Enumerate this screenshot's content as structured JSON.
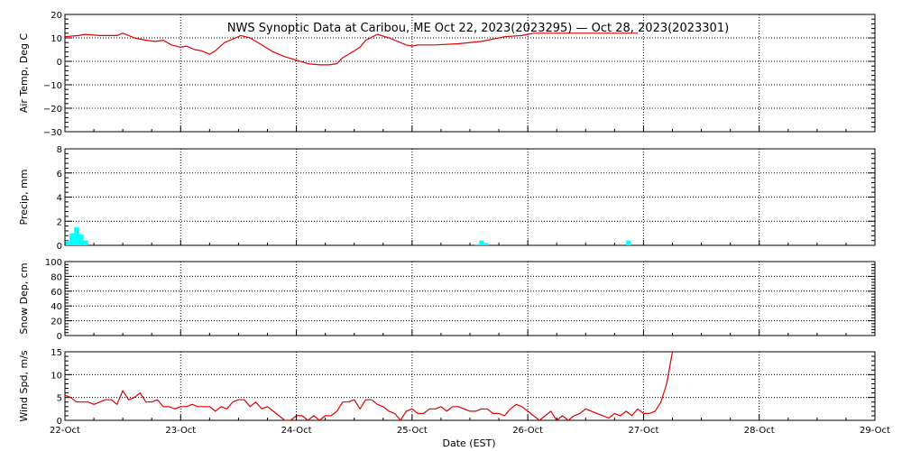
{
  "title": "NWS Synoptic Data at Caribou, ME   Oct 22, 2023(2023295) — Oct 28, 2023(2023301)",
  "colors": {
    "line": "#dd0000",
    "bar": "#00ffff",
    "grid": "#000000",
    "frame": "#000000"
  },
  "x_axis": {
    "label": "Date (EST)",
    "ticks": [
      "22-Oct",
      "23-Oct",
      "24-Oct",
      "25-Oct",
      "26-Oct",
      "27-Oct",
      "28-Oct",
      "29-Oct"
    ],
    "range_days": [
      0,
      7
    ]
  },
  "chart_data": [
    {
      "type": "line",
      "ylabel": "Air Temp, Deg C",
      "ylim": [
        -30,
        20
      ],
      "yticks": [
        -30,
        -20,
        -10,
        0,
        10,
        20
      ],
      "ytick_labels": [
        "−30",
        "−20",
        "−10",
        "0",
        "10",
        "20"
      ],
      "grid": true,
      "x_unit": "days since 22-Oct 00:00 EST",
      "x": [
        0,
        0.12,
        0.17,
        0.3,
        0.45,
        0.5,
        0.6,
        0.7,
        0.78,
        0.85,
        0.92,
        1.0,
        1.05,
        1.12,
        1.18,
        1.25,
        1.3,
        1.38,
        1.45,
        1.52,
        1.6,
        1.7,
        1.8,
        1.9,
        2.0,
        2.1,
        2.2,
        2.28,
        2.35,
        2.4,
        2.45,
        2.55,
        2.6,
        2.7,
        2.8,
        2.9,
        2.95,
        3.0,
        3.05,
        3.2,
        3.4,
        3.6,
        3.8,
        3.95,
        4.05,
        4.15,
        4.3,
        4.5,
        4.7,
        4.85,
        4.95
      ],
      "values": [
        10.5,
        11,
        11.5,
        11,
        11,
        12,
        10,
        9,
        8.5,
        9,
        7,
        6,
        6.5,
        5,
        4.5,
        3,
        4.5,
        8,
        9.5,
        11,
        10,
        7,
        4,
        2,
        0.5,
        -1,
        -1.5,
        -1.5,
        -1,
        1.5,
        3,
        6,
        9,
        11.5,
        10,
        8,
        7,
        6.5,
        7,
        7,
        7.5,
        8.5,
        10.5,
        11,
        12,
        12,
        12,
        12,
        12,
        12,
        12
      ]
    },
    {
      "type": "bar",
      "ylabel": "Precip, mm",
      "ylim": [
        0,
        8
      ],
      "yticks": [
        0,
        2,
        4,
        6,
        8
      ],
      "ytick_labels": [
        "0",
        "2",
        "4",
        "6",
        "8"
      ],
      "grid": true,
      "x_unit": "days since 22-Oct 00:00 EST",
      "bar_width_days": 0.04,
      "x": [
        0,
        0.04,
        0.08,
        0.12,
        0.16,
        3.54,
        3.58,
        3.62,
        4.85
      ],
      "values": [
        0.4,
        1.0,
        1.5,
        0.9,
        0.4,
        0.1,
        0.4,
        0.2,
        0.4
      ]
    },
    {
      "type": "line",
      "ylabel": "Snow Dep, cm",
      "ylim": [
        0,
        100
      ],
      "yticks": [
        0,
        20,
        40,
        60,
        80,
        100
      ],
      "ytick_labels": [
        "0",
        "20",
        "40",
        "60",
        "80",
        "100"
      ],
      "grid": true,
      "x": [],
      "values": []
    },
    {
      "type": "line",
      "ylabel": "Wind Spd, m/s",
      "ylim": [
        0,
        15
      ],
      "yticks": [
        0,
        5,
        10,
        15
      ],
      "ytick_labels": [
        "0",
        "5",
        "10",
        "15"
      ],
      "grid": true,
      "x_unit": "days since 22-Oct 00:00 EST",
      "x": [
        0,
        0.05,
        0.1,
        0.15,
        0.2,
        0.25,
        0.3,
        0.35,
        0.4,
        0.45,
        0.5,
        0.55,
        0.6,
        0.65,
        0.7,
        0.75,
        0.8,
        0.85,
        0.9,
        0.95,
        1.0,
        1.05,
        1.1,
        1.15,
        1.2,
        1.25,
        1.3,
        1.35,
        1.4,
        1.45,
        1.5,
        1.55,
        1.6,
        1.65,
        1.7,
        1.75,
        1.8,
        1.85,
        1.9,
        1.95,
        2.0,
        2.05,
        2.1,
        2.15,
        2.2,
        2.25,
        2.3,
        2.35,
        2.4,
        2.45,
        2.5,
        2.55,
        2.6,
        2.65,
        2.7,
        2.75,
        2.8,
        2.85,
        2.9,
        2.95,
        3.0,
        3.05,
        3.1,
        3.15,
        3.2,
        3.25,
        3.3,
        3.35,
        3.4,
        3.45,
        3.5,
        3.55,
        3.6,
        3.65,
        3.7,
        3.75,
        3.8,
        3.85,
        3.9,
        3.95,
        4.0,
        4.05,
        4.1,
        4.15,
        4.2,
        4.25,
        4.3,
        4.35,
        4.4,
        4.45,
        4.5,
        4.55,
        4.6,
        4.65,
        4.7,
        4.75,
        4.8,
        4.85,
        4.9,
        4.95,
        5.0,
        5.05,
        5.1,
        5.15,
        5.2,
        5.25
      ],
      "values": [
        5.5,
        5,
        4,
        4,
        4,
        3.5,
        4,
        4.5,
        4.5,
        3.5,
        6.5,
        4.5,
        5,
        6,
        4,
        4,
        4.5,
        3,
        3,
        2.5,
        3,
        3,
        3.5,
        3,
        3,
        3,
        2,
        3,
        2.5,
        4,
        4.5,
        4.5,
        3,
        4,
        2.5,
        3,
        2,
        1,
        0,
        0,
        1,
        1,
        0,
        1,
        0,
        1,
        1,
        2,
        4,
        4,
        4.5,
        2.5,
        4.5,
        4.5,
        3.5,
        3,
        2,
        1.5,
        0,
        2,
        2.5,
        1.5,
        1.5,
        2.5,
        2.5,
        3,
        2,
        3,
        3,
        2.5,
        2,
        2,
        2.5,
        2.5,
        1.5,
        1.5,
        1,
        2.5,
        3.5,
        3,
        2,
        1,
        0,
        1,
        2,
        0,
        1,
        0,
        1,
        1.5,
        2.5,
        2,
        1.5,
        1,
        0.5,
        1.5,
        1,
        2,
        1,
        2.5,
        1.5,
        1.5,
        2,
        4,
        8,
        15
      ]
    }
  ]
}
